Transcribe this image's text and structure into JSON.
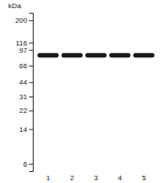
{
  "chart_data": {
    "type": "blot",
    "ylabel": "kDa",
    "categories": [
      "1",
      "2",
      "3",
      "4",
      "5"
    ],
    "values": [
      85,
      85,
      85,
      85,
      85
    ],
    "color": "#1a1a1a",
    "log": "y",
    "ylim": [
      5,
      240
    ],
    "yticks": [
      200,
      116,
      97,
      66,
      44,
      31,
      22,
      14,
      6
    ]
  }
}
